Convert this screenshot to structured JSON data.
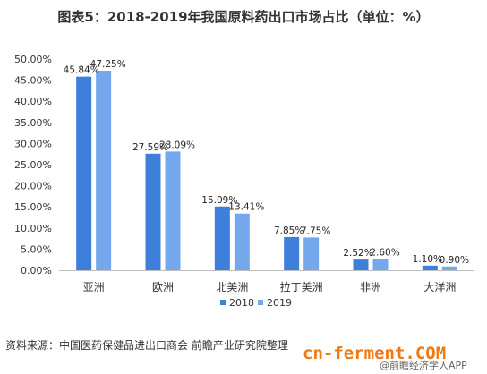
{
  "header": {
    "title": "图表5：2018-2019年我国原料药出口市场占比（单位：%）"
  },
  "chart_data": {
    "type": "bar",
    "title": "图表5：2018-2019年我国原料药出口市场占比（单位：%）",
    "categories": [
      "亚洲",
      "欧洲",
      "北美洲",
      "拉丁美洲",
      "非洲",
      "大洋洲"
    ],
    "series": [
      {
        "name": "2018",
        "color": "#3f7fdc",
        "values": [
          45.84,
          27.59,
          15.09,
          7.85,
          2.52,
          1.1
        ],
        "labels": [
          "45.84%",
          "27.59%",
          "15.09%",
          "7.85%",
          "2.52%",
          "1.10%"
        ]
      },
      {
        "name": "2019",
        "color": "#74a7ec",
        "values": [
          47.25,
          28.09,
          13.41,
          7.75,
          2.6,
          0.9
        ],
        "labels": [
          "47.25%",
          "28.09%",
          "13.41%",
          "7.75%",
          "2.60%",
          "0.90%"
        ]
      }
    ],
    "ylim": [
      0,
      50
    ],
    "yticks": [
      "0.00%",
      "5.00%",
      "10.00%",
      "15.00%",
      "20.00%",
      "25.00%",
      "30.00%",
      "35.00%",
      "40.00%",
      "45.00%",
      "50.00%"
    ],
    "grid": false,
    "legend": "bottom-center"
  },
  "footer": {
    "source": "资料来源：中国医药保健品进出口商会 前瞻产业研究院整理"
  },
  "watermarks": {
    "brand": "cn-ferment.COM",
    "app": "@前瞻经济学人APP"
  }
}
